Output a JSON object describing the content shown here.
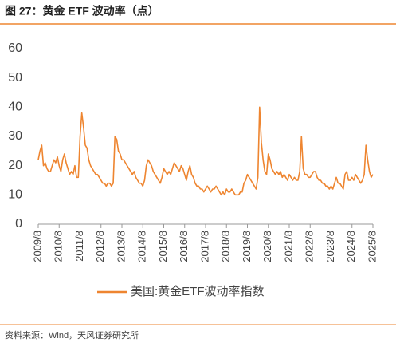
{
  "chart_data": {
    "type": "line",
    "title": "图 27：黄金 ETF 波动率（点）",
    "source": "资料来源：Wind，天风证券研究所",
    "categories": [
      "2009/8",
      null,
      null,
      null,
      null,
      null,
      null,
      null,
      null,
      null,
      null,
      null,
      "2010/8",
      null,
      null,
      null,
      null,
      null,
      null,
      null,
      null,
      null,
      null,
      null,
      "2011/8",
      null,
      null,
      null,
      null,
      null,
      null,
      null,
      null,
      null,
      null,
      null,
      "2012/8",
      null,
      null,
      null,
      null,
      null,
      null,
      null,
      null,
      null,
      null,
      null,
      "2013/8",
      null,
      null,
      null,
      null,
      null,
      null,
      null,
      null,
      null,
      null,
      null,
      "2014/8",
      null,
      null,
      null,
      null,
      null,
      null,
      null,
      null,
      null,
      null,
      null,
      "2015/8",
      null,
      null,
      null,
      null,
      null,
      null,
      null,
      null,
      null,
      null,
      null,
      "2016/8",
      null,
      null,
      null,
      null,
      null,
      null,
      null,
      null,
      null,
      null,
      null,
      "2017/8",
      null,
      null,
      null,
      null,
      null,
      null,
      null,
      null,
      null,
      null,
      null,
      "2018/8",
      null,
      null,
      null,
      null,
      null,
      null,
      null,
      null,
      null,
      null,
      null,
      "2019/8",
      null,
      null,
      null,
      null,
      null,
      null,
      null,
      null,
      null,
      null,
      null,
      "2020/8",
      null,
      null,
      null,
      null,
      null,
      null,
      null,
      null,
      null,
      null,
      null,
      "2021/8",
      null,
      null,
      null,
      null,
      null,
      null,
      null,
      null,
      null,
      null,
      null,
      "2022/8",
      null,
      null,
      null,
      null,
      null,
      null,
      null,
      null,
      null,
      null,
      null,
      "2023/8",
      null,
      null,
      null,
      null,
      null,
      null,
      null,
      null,
      null,
      null,
      null,
      "2024/8",
      null,
      null,
      null,
      null,
      null,
      null,
      null,
      null,
      null,
      null,
      null,
      "2025/8"
    ],
    "series": [
      {
        "name": "美国:黄金ETF波动率指数",
        "color": "#ee8530",
        "values": [
          22,
          25,
          27,
          20,
          21,
          19,
          18,
          18,
          20,
          22,
          21,
          23,
          20,
          18,
          22,
          24,
          21,
          19,
          17,
          18,
          17,
          20,
          16,
          16,
          30,
          38,
          33,
          27,
          26,
          22,
          20,
          19,
          18,
          17,
          17,
          16,
          15,
          14,
          14,
          13,
          14,
          14,
          13,
          14,
          30,
          29,
          25,
          24,
          22,
          22,
          21,
          20,
          19,
          18,
          17,
          18,
          16,
          15,
          14,
          14,
          13,
          15,
          20,
          22,
          21,
          20,
          18,
          17,
          16,
          15,
          14,
          16,
          19,
          18,
          17,
          18,
          17,
          19,
          21,
          20,
          19,
          18,
          20,
          19,
          17,
          15,
          18,
          20,
          17,
          16,
          14,
          13,
          13,
          12,
          12,
          11,
          12,
          13,
          12,
          11,
          12,
          12,
          13,
          12,
          11,
          10,
          11,
          10,
          12,
          11,
          11,
          12,
          11,
          10,
          10,
          10,
          11,
          11,
          14,
          15,
          17,
          16,
          15,
          14,
          13,
          12,
          16,
          40,
          28,
          22,
          18,
          17,
          24,
          22,
          19,
          18,
          17,
          18,
          17,
          18,
          16,
          17,
          16,
          15,
          17,
          16,
          15,
          16,
          15,
          15,
          18,
          30,
          19,
          17,
          17,
          16,
          16,
          17,
          18,
          18,
          16,
          15,
          15,
          14,
          14,
          13,
          13,
          12,
          13,
          12,
          14,
          16,
          14,
          14,
          13,
          12,
          17,
          18,
          15,
          15,
          16,
          15,
          17,
          16,
          15,
          14,
          15,
          17,
          27,
          22,
          18,
          16,
          17
        ]
      }
    ],
    "ylim": [
      0,
      60
    ],
    "yticks": [
      0,
      10,
      20,
      30,
      40,
      50,
      60
    ]
  }
}
